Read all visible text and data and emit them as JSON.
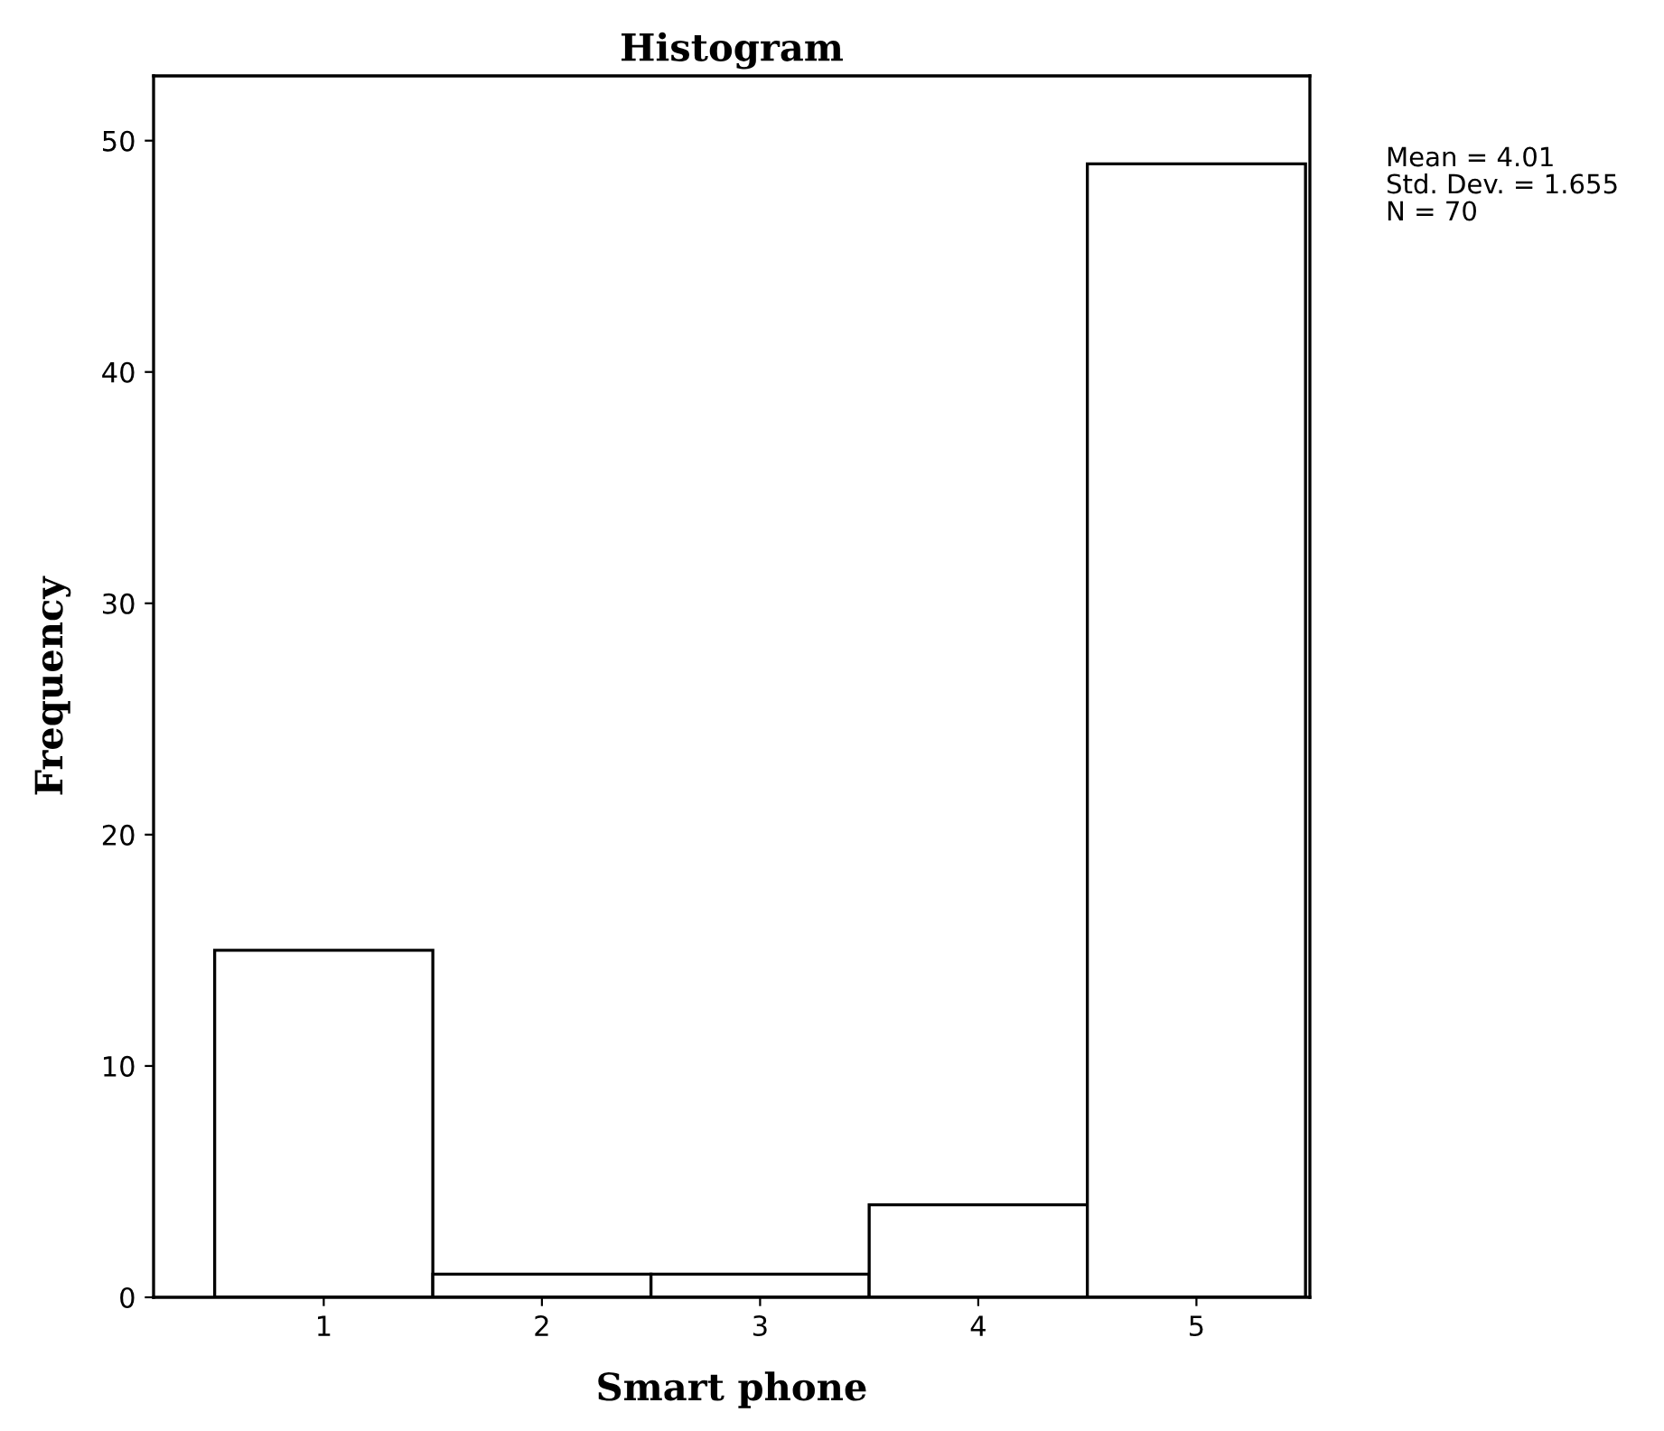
{
  "chart_data": {
    "type": "histogram",
    "title": "Histogram",
    "xlabel": "Smart phone",
    "ylabel": "Frequency",
    "bins": [
      0.5,
      1.5,
      2.5,
      3.5,
      4.5,
      5.5
    ],
    "values": [
      15,
      1,
      1,
      4,
      49
    ],
    "color": "#ffffff",
    "xlim": [
      0.22,
      5.52
    ],
    "xticks": [
      1,
      2,
      3,
      4,
      5
    ],
    "ylim": [
      0,
      52.8
    ],
    "yticks": [
      0,
      10,
      20,
      30,
      40,
      50
    ],
    "annotations": [
      "Mean = 4.01",
      "Std. Dev. = 1.655",
      "N = 70"
    ],
    "grid": false,
    "legend": false
  }
}
